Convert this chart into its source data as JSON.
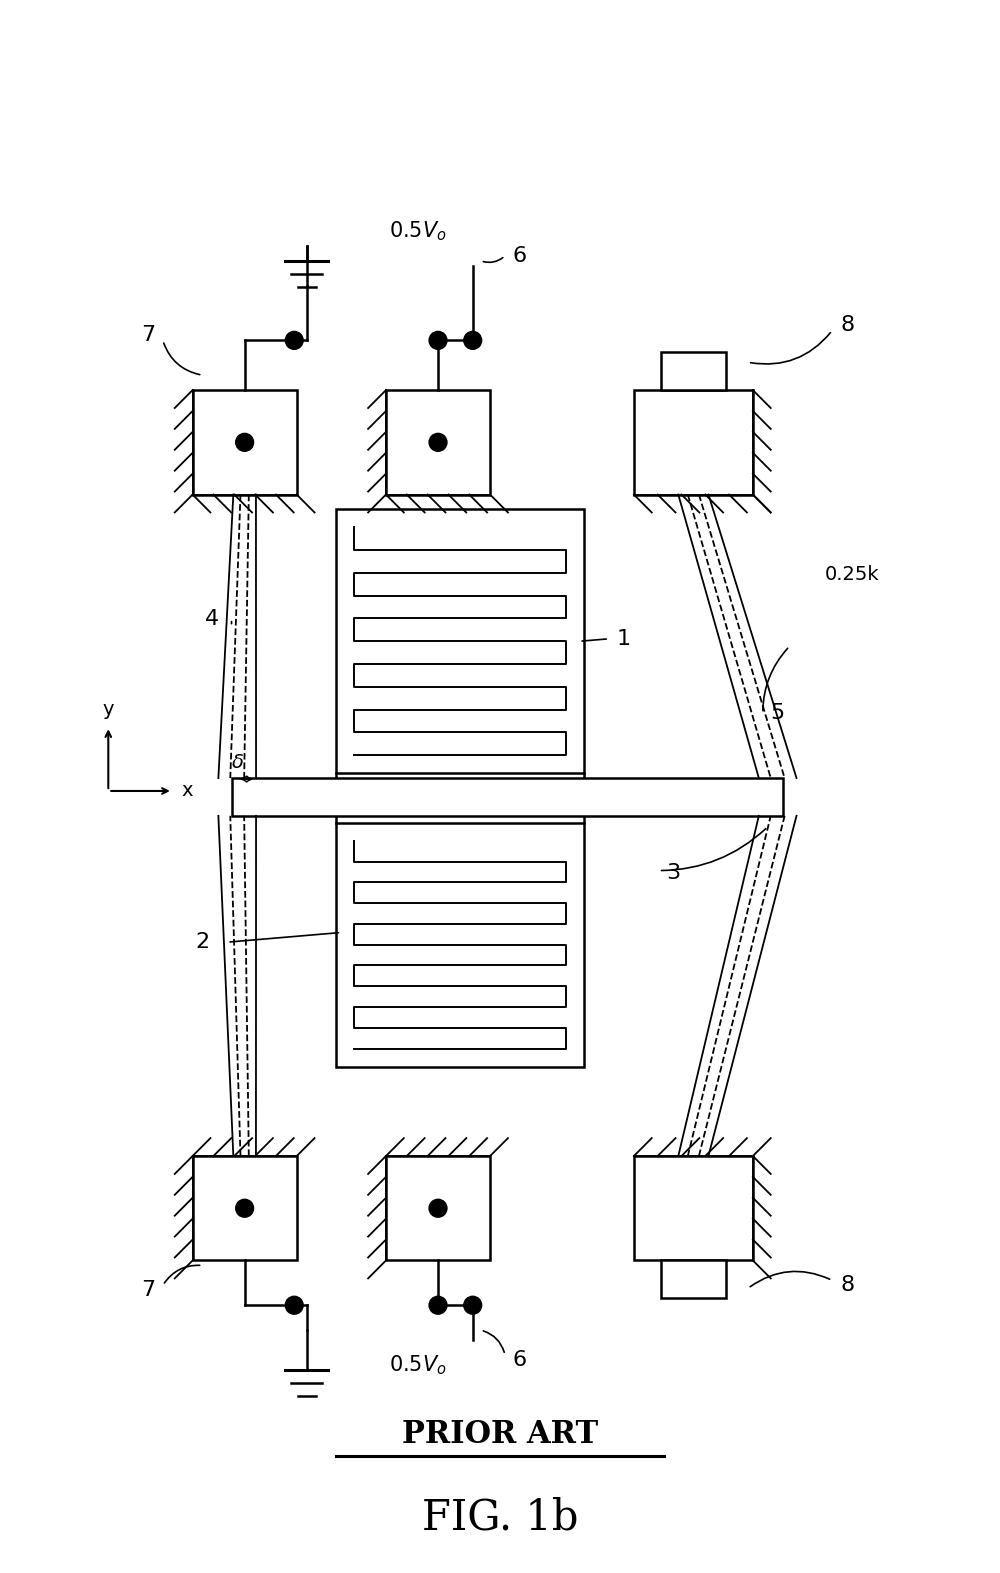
{
  "title": "FIG. 1b",
  "subtitle": "PRIOR ART",
  "bg_color": "#ffffff",
  "line_color": "#000000",
  "fig_width": 10.0,
  "fig_height": 15.73,
  "labels": {
    "7": "7",
    "6": "6",
    "8": "8",
    "1": "1",
    "2": "2",
    "3": "3",
    "4": "4",
    "5": "5",
    "vol": "0.5Vo",
    "k": "0.25k",
    "delta": "δ",
    "x_axis": "x",
    "y_axis": "y",
    "prior_art": "PRIOR ART",
    "fig": "FIG. 1b"
  }
}
